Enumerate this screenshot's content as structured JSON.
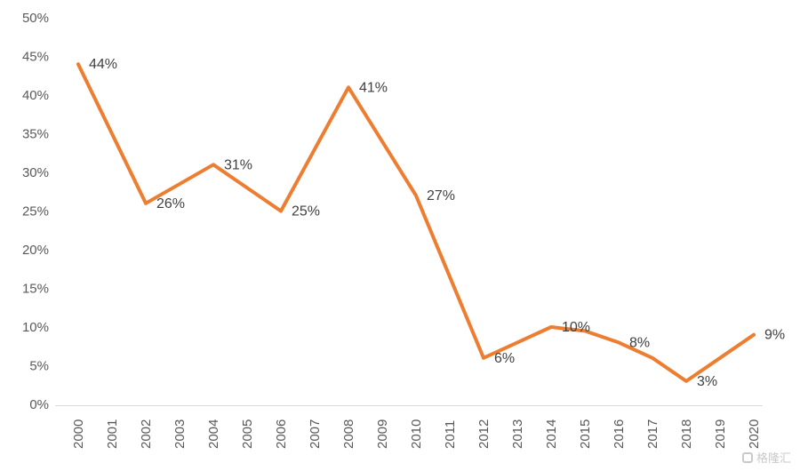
{
  "chart_data": {
    "type": "line",
    "title": "",
    "xlabel": "",
    "ylabel": "",
    "ylim": [
      0,
      50
    ],
    "ytick_step": 5,
    "yticks": [
      "0%",
      "5%",
      "10%",
      "15%",
      "20%",
      "25%",
      "30%",
      "35%",
      "40%",
      "45%",
      "50%"
    ],
    "categories": [
      "2000",
      "2001",
      "2002",
      "2003",
      "2004",
      "2005",
      "2006",
      "2007",
      "2008",
      "2009",
      "2010",
      "2011",
      "2012",
      "2013",
      "2014",
      "2015",
      "2016",
      "2017",
      "2018",
      "2019",
      "2020"
    ],
    "values": [
      44,
      35,
      26,
      28.5,
      31,
      28,
      25,
      33,
      41,
      34,
      27,
      16.5,
      6,
      8,
      10,
      9.5,
      8,
      6,
      3,
      6,
      9
    ],
    "point_labels": [
      "44%",
      "",
      "26%",
      "",
      "31%",
      "",
      "25%",
      "",
      "41%",
      "",
      "27%",
      "",
      "6%",
      "",
      "10%",
      "",
      "8%",
      "",
      "3%",
      "",
      "9%"
    ],
    "line_color": "#ED7D31",
    "label_color": "#404040",
    "axis_text_color": "#595959",
    "axis_line_color": "#d9d9d9",
    "grid": "off",
    "legend": "none"
  },
  "watermark": {
    "text": "格隆汇"
  }
}
